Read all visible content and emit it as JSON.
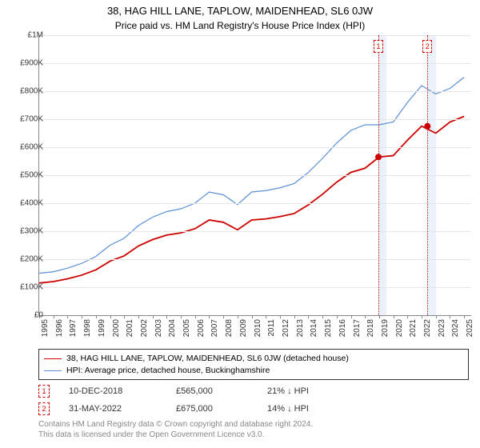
{
  "titles": {
    "line1": "38, HAG HILL LANE, TAPLOW, MAIDENHEAD, SL6 0JW",
    "line2": "Price paid vs. HM Land Registry's House Price Index (HPI)"
  },
  "chart": {
    "type": "line",
    "xlim": [
      1995,
      2025.5
    ],
    "ylim": [
      0,
      1000000
    ],
    "ytick_step": 100000,
    "ytick_labels": [
      "£0",
      "£100K",
      "£200K",
      "£300K",
      "£400K",
      "£500K",
      "£600K",
      "£700K",
      "£800K",
      "£900K",
      "£1M"
    ],
    "xticks": [
      1995,
      1996,
      1997,
      1998,
      1999,
      2000,
      2001,
      2002,
      2003,
      2004,
      2005,
      2006,
      2007,
      2008,
      2009,
      2010,
      2011,
      2012,
      2013,
      2014,
      2015,
      2016,
      2017,
      2018,
      2019,
      2020,
      2021,
      2022,
      2023,
      2024,
      2025
    ],
    "background_color": "#ffffff",
    "grid_color": "#e6e6e6",
    "series": [
      {
        "name": "hpi",
        "color": "#5b8fd6",
        "width": 1.2,
        "label": "HPI: Average price, detached house, Buckinghamshire",
        "points": [
          [
            1995,
            150000
          ],
          [
            1996,
            155000
          ],
          [
            1997,
            168000
          ],
          [
            1998,
            185000
          ],
          [
            1999,
            210000
          ],
          [
            2000,
            250000
          ],
          [
            2001,
            275000
          ],
          [
            2002,
            320000
          ],
          [
            2003,
            350000
          ],
          [
            2004,
            370000
          ],
          [
            2005,
            380000
          ],
          [
            2006,
            400000
          ],
          [
            2007,
            440000
          ],
          [
            2008,
            430000
          ],
          [
            2009,
            395000
          ],
          [
            2010,
            440000
          ],
          [
            2011,
            445000
          ],
          [
            2012,
            455000
          ],
          [
            2013,
            470000
          ],
          [
            2014,
            510000
          ],
          [
            2015,
            560000
          ],
          [
            2016,
            615000
          ],
          [
            2017,
            660000
          ],
          [
            2018,
            680000
          ],
          [
            2019,
            680000
          ],
          [
            2020,
            690000
          ],
          [
            2021,
            760000
          ],
          [
            2022,
            820000
          ],
          [
            2023,
            790000
          ],
          [
            2024,
            810000
          ],
          [
            2025,
            850000
          ]
        ]
      },
      {
        "name": "property",
        "color": "#cc0000",
        "width": 1.8,
        "label": "38, HAG HILL LANE, TAPLOW, MAIDENHEAD, SL6 0JW (detached house)",
        "points": [
          [
            1995,
            115000
          ],
          [
            1996,
            120000
          ],
          [
            1997,
            130000
          ],
          [
            1998,
            143000
          ],
          [
            1999,
            162000
          ],
          [
            2000,
            193000
          ],
          [
            2001,
            212000
          ],
          [
            2002,
            247000
          ],
          [
            2003,
            270000
          ],
          [
            2004,
            286000
          ],
          [
            2005,
            294000
          ],
          [
            2006,
            309000
          ],
          [
            2007,
            340000
          ],
          [
            2008,
            332000
          ],
          [
            2009,
            305000
          ],
          [
            2010,
            340000
          ],
          [
            2011,
            344000
          ],
          [
            2012,
            352000
          ],
          [
            2013,
            363000
          ],
          [
            2014,
            394000
          ],
          [
            2015,
            432000
          ],
          [
            2016,
            475000
          ],
          [
            2017,
            510000
          ],
          [
            2018,
            525000
          ],
          [
            2019,
            565000
          ],
          [
            2020,
            570000
          ],
          [
            2021,
            625000
          ],
          [
            2022,
            675000
          ],
          [
            2023,
            650000
          ],
          [
            2024,
            690000
          ],
          [
            2025,
            710000
          ]
        ]
      }
    ],
    "events": [
      {
        "idx": "1",
        "x": 2018.95,
        "shade_to": 2019.5,
        "point_y": 565000,
        "point_color": "#cc0000"
      },
      {
        "idx": "2",
        "x": 2022.41,
        "shade_to": 2023.0,
        "point_y": 675000,
        "point_color": "#cc0000"
      }
    ]
  },
  "legend": {
    "border_color": "#333333"
  },
  "transactions": [
    {
      "idx": "1",
      "date": "10-DEC-2018",
      "price": "£565,000",
      "delta": "21% ↓ HPI"
    },
    {
      "idx": "2",
      "date": "31-MAY-2022",
      "price": "£675,000",
      "delta": "14% ↓ HPI"
    }
  ],
  "footer": {
    "line1": "Contains HM Land Registry data © Crown copyright and database right 2024.",
    "line2": "This data is licensed under the Open Government Licence v3.0."
  }
}
